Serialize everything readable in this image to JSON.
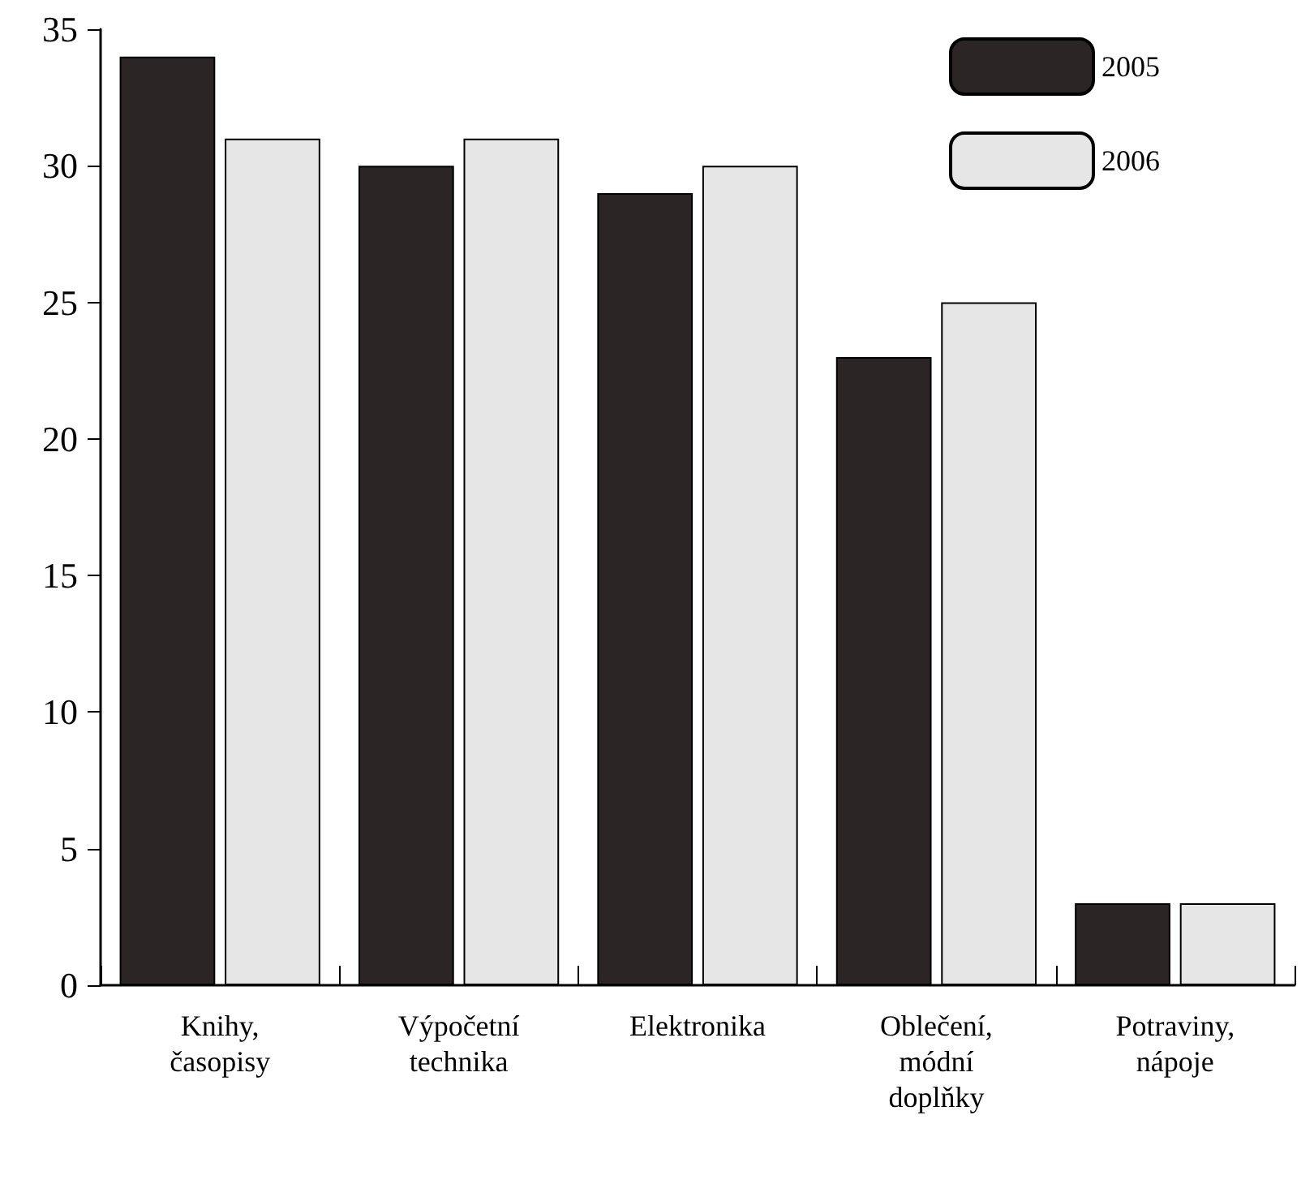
{
  "chart_data": {
    "type": "bar",
    "categories": [
      "Knihy, časopisy",
      "Výpočetní technika",
      "Elektronika",
      "Oblečení, módní doplňky",
      "Potraviny, nápoje"
    ],
    "series": [
      {
        "name": "2005",
        "color": "#2b2526",
        "values": [
          34,
          30,
          29,
          23,
          3
        ]
      },
      {
        "name": "2006",
        "color": "#e6e6e6",
        "values": [
          31,
          31,
          30,
          25,
          3
        ]
      }
    ],
    "ylim": [
      0,
      35
    ],
    "yticks": [
      0,
      5,
      10,
      15,
      20,
      25,
      30,
      35
    ],
    "grid": false,
    "legend": "top right"
  }
}
